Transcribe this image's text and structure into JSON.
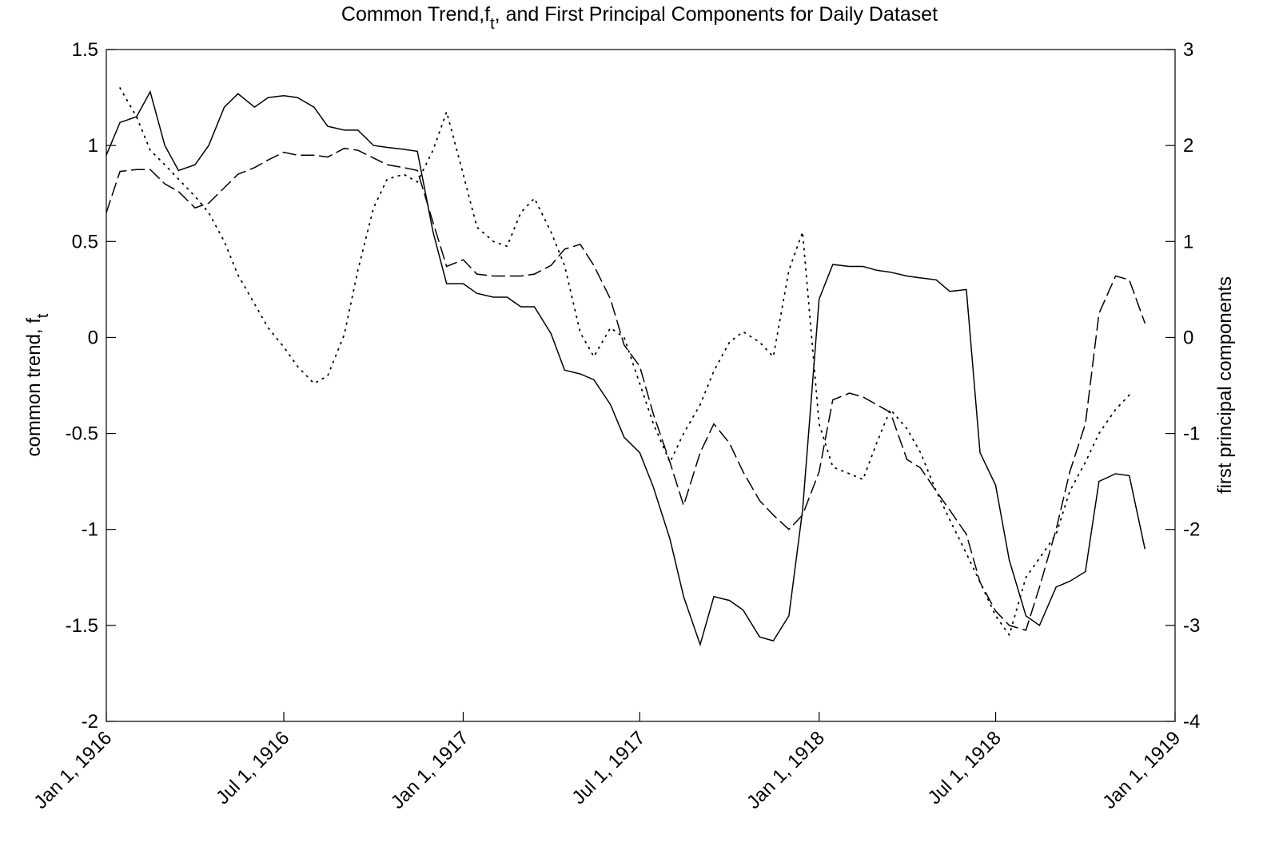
{
  "chart_data": {
    "type": "line",
    "title": [
      "Common Trend,f",
      "t",
      ", and First Principal Components for Daily Dataset"
    ],
    "ylabel": [
      "common trend,  f",
      "t"
    ],
    "y2label": "first principal components",
    "x": [
      "1916-01-01",
      "1916-01-15",
      "1916-02-01",
      "1916-02-15",
      "1916-03-01",
      "1916-03-15",
      "1916-04-01",
      "1916-04-15",
      "1916-05-01",
      "1916-05-15",
      "1916-06-01",
      "1916-06-15",
      "1916-07-01",
      "1916-07-15",
      "1916-08-01",
      "1916-08-15",
      "1916-09-01",
      "1916-09-15",
      "1916-10-01",
      "1916-10-15",
      "1916-11-01",
      "1916-11-15",
      "1916-12-01",
      "1916-12-15",
      "1917-01-01",
      "1917-01-15",
      "1917-02-01",
      "1917-02-15",
      "1917-03-01",
      "1917-03-15",
      "1917-04-01",
      "1917-04-15",
      "1917-05-01",
      "1917-05-15",
      "1917-06-01",
      "1917-06-15",
      "1917-07-01",
      "1917-07-15",
      "1917-08-01",
      "1917-08-15",
      "1917-09-01",
      "1917-09-15",
      "1917-10-01",
      "1917-10-15",
      "1917-11-01",
      "1917-11-15",
      "1917-12-01",
      "1917-12-15",
      "1918-01-01",
      "1918-01-15",
      "1918-02-01",
      "1918-02-15",
      "1918-03-01",
      "1918-03-15",
      "1918-04-01",
      "1918-04-15",
      "1918-05-01",
      "1918-05-15",
      "1918-06-01",
      "1918-06-15",
      "1918-07-01",
      "1918-07-15",
      "1918-08-01",
      "1918-08-15",
      "1918-09-01",
      "1918-09-15",
      "1918-10-01",
      "1918-10-15",
      "1918-11-01",
      "1918-11-15",
      "1918-12-01"
    ],
    "series": [
      {
        "color": "#000000",
        "line_style": "solid",
        "axis": "y",
        "values": [
          0.95,
          1.12,
          1.15,
          1.28,
          1.0,
          0.87,
          0.9,
          1.0,
          1.2,
          1.27,
          1.2,
          1.25,
          1.26,
          1.25,
          1.2,
          1.1,
          1.08,
          1.08,
          1.0,
          0.99,
          0.98,
          0.97,
          0.55,
          0.28,
          0.28,
          0.23,
          0.21,
          0.21,
          0.16,
          0.16,
          0.02,
          -0.17,
          -0.19,
          -0.22,
          -0.35,
          -0.52,
          -0.6,
          -0.78,
          -1.05,
          -1.35,
          -1.6,
          -1.35,
          -1.37,
          -1.42,
          -1.56,
          -1.58,
          -1.45,
          -0.9,
          0.2,
          0.38,
          0.37,
          0.37,
          0.35,
          0.34,
          0.32,
          0.31,
          0.3,
          0.24,
          0.25,
          -0.6,
          -0.77,
          -1.16,
          -1.45,
          -1.5,
          -1.3,
          -1.27,
          -1.22,
          -0.75,
          -0.71,
          -0.72,
          -1.1
        ]
      },
      {
        "color": "#000000",
        "line_style": "dashed",
        "axis": "y2",
        "values": [
          1.3,
          1.73,
          1.75,
          1.75,
          1.6,
          1.52,
          1.35,
          1.4,
          1.56,
          1.7,
          1.77,
          1.85,
          1.93,
          1.9,
          1.9,
          1.88,
          1.97,
          1.95,
          1.87,
          1.8,
          1.77,
          1.74,
          1.2,
          0.74,
          0.81,
          0.66,
          0.64,
          0.64,
          0.64,
          0.66,
          0.75,
          0.92,
          0.97,
          0.75,
          0.4,
          -0.08,
          -0.3,
          -0.8,
          -1.3,
          -1.75,
          -1.2,
          -0.9,
          -1.1,
          -1.4,
          -1.7,
          -1.85,
          -2.0,
          -1.85,
          -1.4,
          -0.65,
          -0.58,
          -0.62,
          -0.7,
          -0.78,
          -1.27,
          -1.36,
          -1.6,
          -1.8,
          -2.05,
          -2.55,
          -2.85,
          -3.0,
          -3.05,
          -2.6,
          -2.0,
          -1.4,
          -0.9,
          0.25,
          0.64,
          0.6,
          0.15
        ]
      },
      {
        "color": "#000000",
        "line_style": "dotted",
        "axis": "y2",
        "values": [
          null,
          2.6,
          2.3,
          1.95,
          1.8,
          1.65,
          1.47,
          1.3,
          1.0,
          0.65,
          0.35,
          0.1,
          -0.1,
          -0.3,
          -0.48,
          -0.4,
          0.03,
          0.7,
          1.35,
          1.65,
          1.7,
          1.62,
          1.95,
          2.35,
          1.7,
          1.15,
          1.0,
          0.95,
          1.3,
          1.45,
          1.1,
          0.75,
          0.05,
          -0.2,
          0.1,
          0.0,
          -0.48,
          -0.9,
          -1.3,
          -1.0,
          -0.7,
          -0.35,
          -0.05,
          0.06,
          -0.05,
          -0.2,
          0.7,
          1.1,
          -0.9,
          -1.35,
          -1.42,
          -1.48,
          -1.1,
          -0.75,
          -0.95,
          -1.2,
          -1.6,
          -1.9,
          -2.25,
          -2.55,
          -2.9,
          -3.1,
          -2.5,
          -2.3,
          -2.05,
          -1.6,
          -1.3,
          -1.0,
          -0.75,
          -0.6,
          null
        ]
      }
    ],
    "xlim": [
      "1916-01-01",
      "1919-01-01"
    ],
    "xticks": [
      {
        "value": "1916-01-01",
        "label": "Jan 1, 1916"
      },
      {
        "value": "1916-07-01",
        "label": "Jul 1, 1916"
      },
      {
        "value": "1917-01-01",
        "label": "Jan 1, 1917"
      },
      {
        "value": "1917-07-01",
        "label": "Jul 1, 1917"
      },
      {
        "value": "1918-01-01",
        "label": "Jan 1, 1918"
      },
      {
        "value": "1918-07-01",
        "label": "Jul 1, 1918"
      },
      {
        "value": "1919-01-01",
        "label": "Jan 1, 1919"
      }
    ],
    "ylim": [
      -2,
      1.5
    ],
    "yticks": [
      -2,
      -1.5,
      -1,
      -0.5,
      0,
      0.5,
      1,
      1.5
    ],
    "y2lim": [
      -4,
      3
    ],
    "y2ticks": [
      -4,
      -3,
      -2,
      -1,
      0,
      1,
      2,
      3
    ],
    "grid": false
  }
}
